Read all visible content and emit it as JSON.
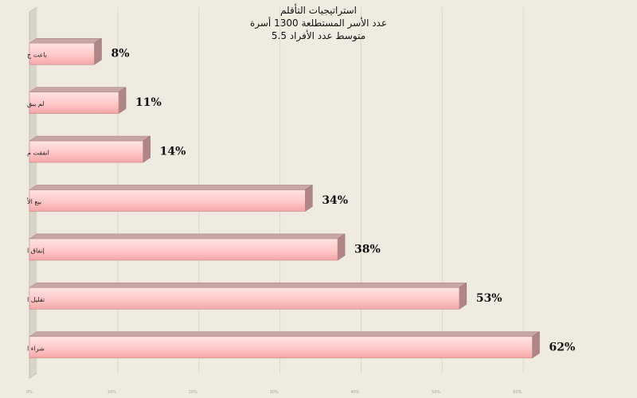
{
  "chart_data": {
    "type": "bar",
    "orientation": "horizontal",
    "title_lines": [
      "استراتيجيات التأقلم",
      "عدد الأسر المستطلعة 1300 أسرة",
      "متوسط عدد الأفراد 5.5"
    ],
    "categories": [
      "باعت ج",
      "لم يبق",
      "انفقت م",
      "بيع الأ",
      "إنفاق ا",
      "تقليل ا",
      "شراء ا"
    ],
    "values": [
      8,
      11,
      14,
      34,
      38,
      53,
      62
    ],
    "value_labels": [
      "8%",
      "11%",
      "14%",
      "34%",
      "38%",
      "53%",
      "62%"
    ],
    "xlim": [
      0,
      70
    ],
    "x_tick_labels": [
      "0%",
      "10%",
      "20%",
      "30%",
      "40%",
      "50%",
      "60%"
    ],
    "grid": true,
    "legend": "none",
    "colors": {
      "bar_front": "#ffc4c4",
      "bar_front_light": "#ffe4e4",
      "bar_top": "#c9a6a6",
      "bar_side": "#b08585",
      "wall": "#d8d4c8",
      "grid": "#dcd8cc",
      "background": "#efebe0"
    }
  }
}
